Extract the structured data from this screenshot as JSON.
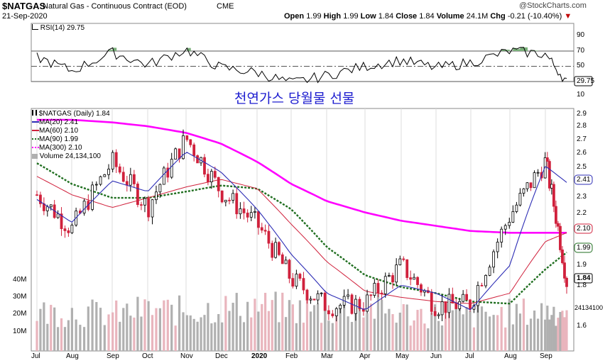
{
  "header": {
    "symbol": "$NATGAS",
    "name": "Natural Gas - Continuous Contract (EOD)",
    "exchange": "CME",
    "date": "21-Sep-2020",
    "copyright": "@StockCharts.com",
    "open_label": "Open",
    "open": "1.99",
    "high_label": "High",
    "high": "1.99",
    "low_label": "Low",
    "low": "1.84",
    "close_label": "Close",
    "close": "1.84",
    "volume_label": "Volume",
    "volume": "24.1M",
    "chg_label": "Chg",
    "chg": "-0.21 (-10.40%)",
    "chg_arrow": "▼"
  },
  "annotation": "천연가스 당월물 선물",
  "rsi_panel": {
    "legend": "RSI(14) 29.75",
    "current_badge": "29.75",
    "ticks": [
      "90",
      "70",
      "50",
      "30",
      "10"
    ]
  },
  "price_panel": {
    "legend": {
      "main": "$NATGAS (Daily) 1.84",
      "ma20": "MA(20) 2.41",
      "ma60": "MA(60) 2.10",
      "ma90": "MA(90) 1.99",
      "ma300": "MA(300) 2.10",
      "volume": "Volume 24,134,100"
    },
    "y_ticks": [
      "2.9",
      "2.8",
      "2.7",
      "2.6",
      "2.5",
      "2.3",
      "2.2",
      "2.1",
      "2.0",
      "1.9",
      "1.8",
      "1.7",
      "1.6"
    ],
    "badges": {
      "ma20": "2.41",
      "ma60": "2.10",
      "ma90": "1.99",
      "close": "1.84",
      "volume": "24134100"
    },
    "vol_ticks": [
      "40M",
      "30M",
      "20M",
      "10M"
    ]
  },
  "x_labels": [
    "Jul",
    "Aug",
    "Sep",
    "Oct",
    "Nov",
    "Dec",
    "2020",
    "Feb",
    "Mar",
    "Apr",
    "May",
    "Jun",
    "Jul",
    "Aug",
    "Sep"
  ],
  "colors": {
    "ma20": "#2d2db5",
    "ma60": "#d0213c",
    "ma90": "#1f6e1f",
    "ma300": "#ff00ff",
    "volume": "#b0b0b0",
    "up_candle": "#000000",
    "down_candle": "#d0213c",
    "rsi_line": "#000000",
    "rsi_fill": "#7ab07a",
    "annotation": "#1c1ccf"
  },
  "chart_data": [
    {
      "type": "line",
      "title": "RSI(14)",
      "ylim": [
        0,
        100
      ],
      "reference_lines": [
        70,
        50,
        30
      ],
      "x": [
        "2019-07",
        "2019-08",
        "2019-09",
        "2019-10",
        "2019-11",
        "2019-12",
        "2020-01",
        "2020-02",
        "2020-03",
        "2020-04",
        "2020-05",
        "2020-06",
        "2020-07",
        "2020-08",
        "2020-09",
        "2020-09-21"
      ],
      "series": [
        {
          "name": "RSI(14)",
          "values": [
            62,
            44,
            68,
            52,
            72,
            48,
            42,
            28,
            38,
            50,
            58,
            48,
            55,
            70,
            66,
            29.75
          ]
        }
      ]
    },
    {
      "type": "line",
      "title": "$NATGAS (Daily)",
      "ylim": [
        1.52,
        2.95
      ],
      "y_scale": "log",
      "x": [
        "2019-07",
        "2019-08",
        "2019-09",
        "2019-10",
        "2019-11",
        "2019-12",
        "2020-01",
        "2020-02",
        "2020-03",
        "2020-04",
        "2020-05",
        "2020-06",
        "2020-07",
        "2020-08",
        "2020-09",
        "2020-09-21"
      ],
      "series": [
        {
          "name": "$NATGAS (Daily)",
          "values": [
            2.33,
            2.12,
            2.55,
            2.25,
            2.72,
            2.35,
            2.15,
            1.85,
            1.72,
            1.73,
            1.92,
            1.72,
            1.73,
            2.2,
            2.55,
            1.84
          ]
        },
        {
          "name": "MA(20)",
          "values": [
            2.3,
            2.16,
            2.42,
            2.35,
            2.62,
            2.48,
            2.24,
            1.98,
            1.78,
            1.7,
            1.82,
            1.78,
            1.7,
            1.92,
            2.52,
            2.41
          ]
        },
        {
          "name": "MA(60)",
          "values": [
            2.45,
            2.33,
            2.25,
            2.31,
            2.38,
            2.43,
            2.37,
            2.15,
            1.94,
            1.79,
            1.76,
            1.74,
            1.73,
            1.78,
            2.05,
            2.1
          ]
        },
        {
          "name": "MA(90)",
          "values": [
            2.54,
            2.4,
            2.31,
            2.31,
            2.35,
            2.39,
            2.37,
            2.24,
            2.02,
            1.87,
            1.81,
            1.78,
            1.74,
            1.73,
            1.9,
            1.99
          ]
        },
        {
          "name": "MA(300)",
          "values": [
            2.86,
            2.86,
            2.84,
            2.81,
            2.76,
            2.68,
            2.55,
            2.4,
            2.29,
            2.22,
            2.17,
            2.14,
            2.11,
            2.1,
            2.1,
            2.1
          ]
        }
      ],
      "volume": {
        "name": "Volume",
        "unit": "shares",
        "values_millions": [
          22,
          23,
          21,
          24,
          23,
          25,
          26,
          24,
          23,
          25,
          22,
          21,
          20,
          22,
          23,
          24.1
        ]
      }
    }
  ]
}
